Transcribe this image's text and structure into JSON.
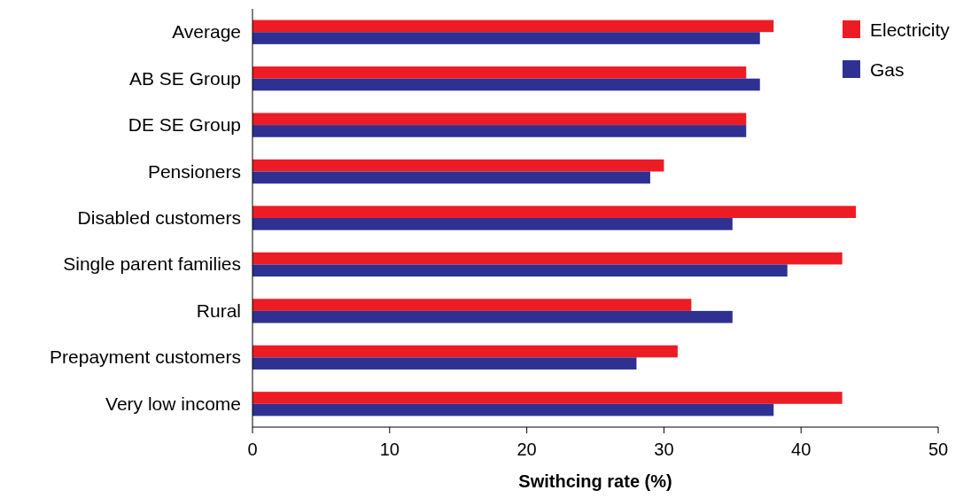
{
  "chart_data": {
    "type": "bar",
    "orientation": "horizontal",
    "xlabel": "Swithcing rate (%)",
    "categories": [
      "Average",
      "AB SE Group",
      "DE SE Group",
      "Pensioners",
      "Disabled customers",
      "Single parent families",
      "Rural",
      "Prepayment customers",
      "Very low income"
    ],
    "series": [
      {
        "name": "Electricity",
        "color": "#ed1c24",
        "values": [
          38,
          36,
          36,
          30,
          44,
          43,
          32,
          31,
          43
        ]
      },
      {
        "name": "Gas",
        "color": "#2e3192",
        "values": [
          37,
          37,
          36,
          29,
          35,
          39,
          35,
          28,
          38
        ]
      }
    ],
    "xlim": [
      0,
      50
    ],
    "xticks": [
      0,
      10,
      20,
      30,
      40,
      50
    ],
    "legend": "top right",
    "grid": false
  }
}
